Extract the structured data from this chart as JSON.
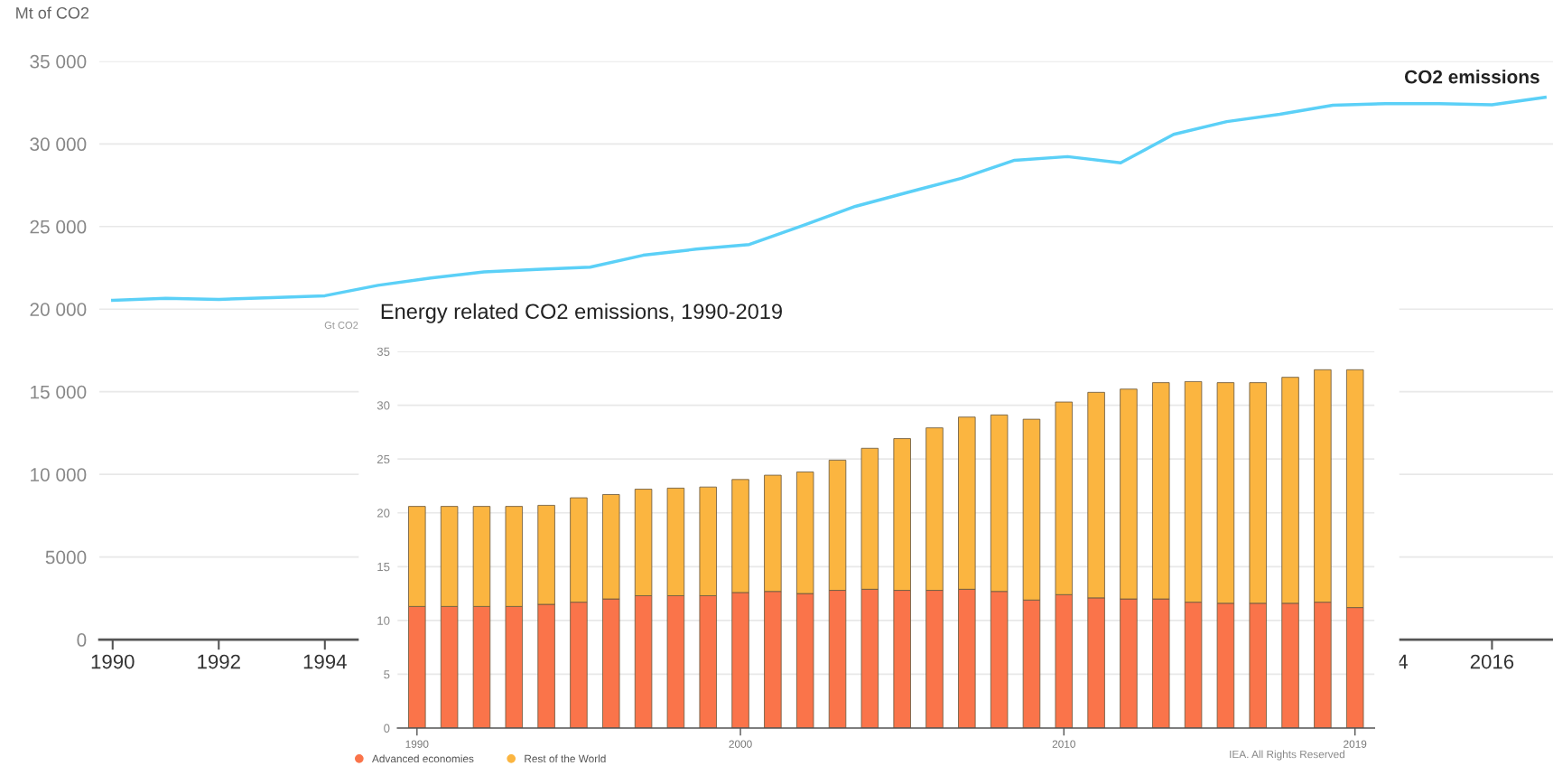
{
  "chart_data": [
    {
      "type": "line",
      "ylabel": "Mt of CO2",
      "x": [
        1990,
        1991,
        1992,
        1993,
        1994,
        1995,
        1996,
        1997,
        1998,
        1999,
        2000,
        2001,
        2002,
        2003,
        2004,
        2005,
        2006,
        2007,
        2008,
        2009,
        2010,
        2011,
        2012,
        2013,
        2014,
        2015,
        2016,
        2017
      ],
      "series": [
        {
          "name": "CO2 emissions",
          "color": "#5bd0f7",
          "values": [
            20530,
            20660,
            20590,
            20690,
            20810,
            21440,
            21880,
            22250,
            22410,
            22540,
            23260,
            23630,
            23910,
            25050,
            26220,
            27080,
            27920,
            29010,
            29230,
            28850,
            30580,
            31350,
            31790,
            32340,
            32440,
            32440,
            32370,
            32820
          ]
        }
      ],
      "xlim": [
        1989.75,
        2017.15
      ],
      "xticks": [
        1990,
        1992,
        1994,
        2014,
        2016
      ],
      "ylim": [
        0,
        35000
      ],
      "yticks": [
        0,
        5000,
        {
          "value": 10000,
          "label": "10 000"
        },
        {
          "value": 15000,
          "label": "15 000"
        },
        {
          "value": 20000,
          "label": "20 000"
        },
        {
          "value": 25000,
          "label": "25 000"
        },
        {
          "value": 30000,
          "label": "30 000"
        },
        {
          "value": 35000,
          "label": "35 000"
        }
      ],
      "grid": "y",
      "legend": false,
      "marker": "none",
      "line_style": "solid"
    },
    {
      "type": "bar",
      "title": "Energy related CO2 emissions, 1990-2019",
      "ylabel": "Gt CO2",
      "categories": [
        "1990",
        null,
        null,
        null,
        null,
        null,
        null,
        null,
        null,
        null,
        "2000",
        null,
        null,
        null,
        null,
        null,
        null,
        null,
        null,
        null,
        "2010",
        null,
        null,
        null,
        null,
        null,
        null,
        null,
        null,
        "2019"
      ],
      "stacked": true,
      "series": [
        {
          "name": "Advanced economies",
          "color": "#fa744a",
          "values": [
            11.3,
            11.3,
            11.3,
            11.3,
            11.5,
            11.7,
            12.0,
            12.3,
            12.3,
            12.3,
            12.6,
            12.7,
            12.5,
            12.8,
            12.9,
            12.8,
            12.8,
            12.9,
            12.7,
            11.9,
            12.4,
            12.1,
            12.0,
            12.0,
            11.7,
            11.6,
            11.6,
            11.6,
            11.7,
            11.2
          ]
        },
        {
          "name": "Rest of the World",
          "color": "#fbb540",
          "values": [
            9.3,
            9.3,
            9.3,
            9.3,
            9.2,
            9.7,
            9.7,
            9.9,
            10.0,
            10.1,
            10.5,
            10.8,
            11.3,
            12.1,
            13.1,
            14.1,
            15.1,
            16.0,
            16.4,
            16.8,
            17.9,
            19.1,
            19.5,
            20.1,
            20.5,
            20.5,
            20.5,
            21.0,
            21.6,
            22.1
          ]
        }
      ],
      "ylim": [
        0,
        35
      ],
      "yticks": [
        0,
        5,
        10,
        15,
        20,
        25,
        30,
        35
      ],
      "grid": "y",
      "legend": "bottom left",
      "annotations": [
        "IEA. All Rights Reserved"
      ]
    }
  ]
}
